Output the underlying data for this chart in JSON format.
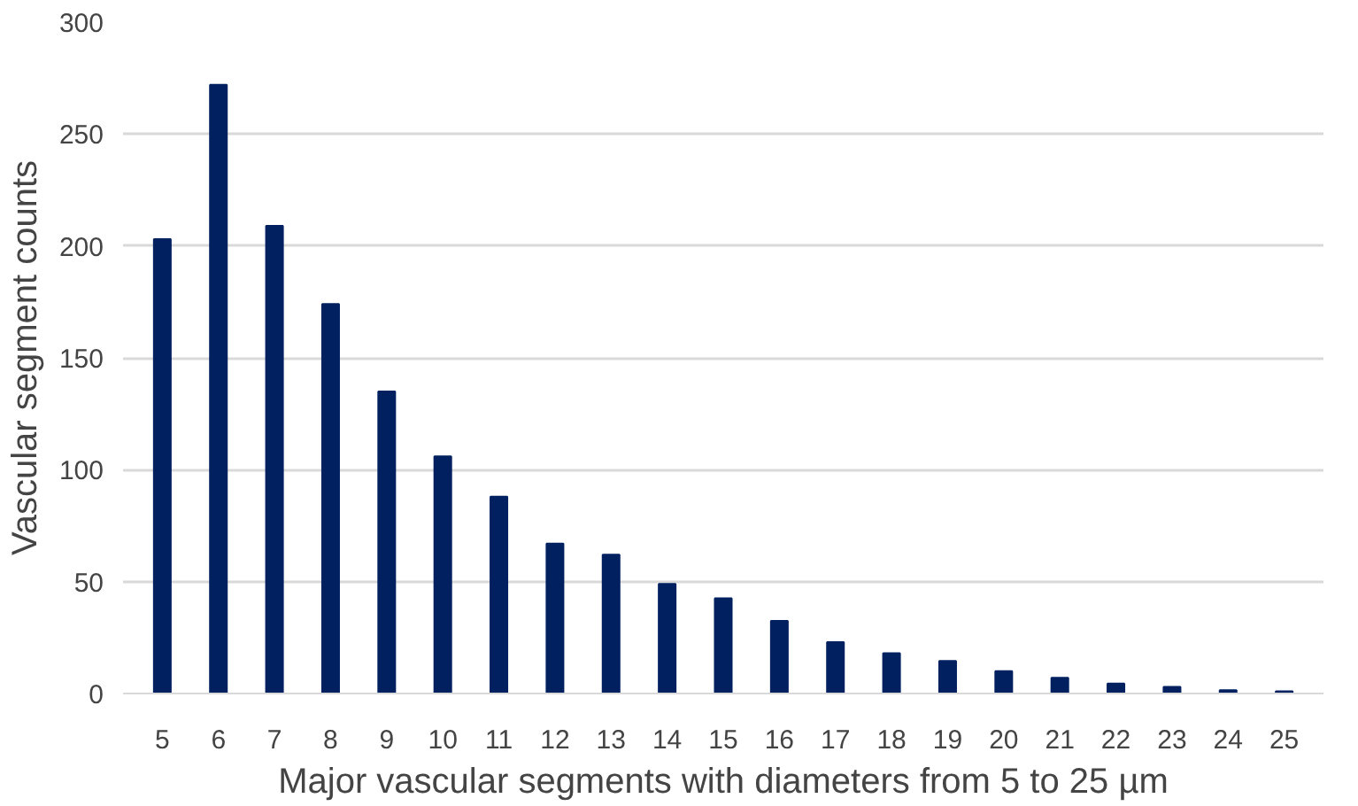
{
  "chart_data": {
    "type": "bar",
    "xlabel": "Major vascular segments with diameters from 5 to 25 µm",
    "ylabel": "Vascular segment counts",
    "categories": [
      "5",
      "6",
      "7",
      "8",
      "9",
      "10",
      "11",
      "12",
      "13",
      "14",
      "15",
      "16",
      "17",
      "18",
      "19",
      "20",
      "21",
      "22",
      "23",
      "24",
      "25"
    ],
    "values": [
      203,
      272,
      209,
      174,
      135,
      106,
      88,
      67,
      62,
      49,
      42.5,
      32.5,
      23,
      18,
      14.5,
      10,
      7,
      4.5,
      3,
      1.5,
      1
    ],
    "color": "#002060",
    "ylim": [
      0,
      300
    ],
    "yticks": [
      0,
      50,
      100,
      150,
      200,
      250,
      300
    ],
    "grid": "y"
  }
}
